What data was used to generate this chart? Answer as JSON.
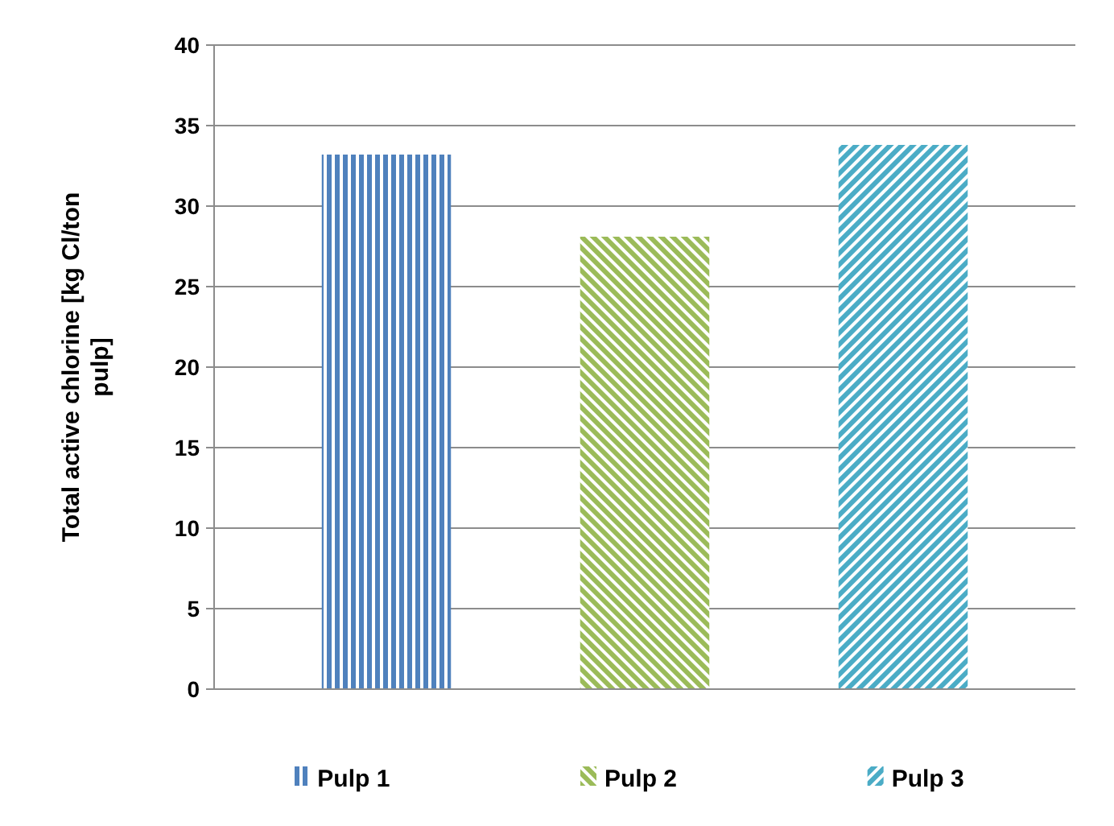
{
  "chart_data": {
    "type": "bar",
    "ylabel": "Total active chlorine [kg Cl/ton pulp]",
    "categories": [
      null
    ],
    "series": [
      {
        "name": "Pulp 1",
        "color": "#4f81bd",
        "values": [
          33.2
        ]
      },
      {
        "name": "Pulp 2",
        "color": "#9bbb59",
        "values": [
          28.1
        ]
      },
      {
        "name": "Pulp 3",
        "color": "#4bacc6",
        "values": [
          33.8
        ]
      }
    ],
    "ylim": [
      0,
      40
    ],
    "yticks": [
      0,
      5,
      10,
      15,
      20,
      25,
      30,
      35,
      40
    ],
    "grid": "y",
    "legend": "bottom"
  }
}
